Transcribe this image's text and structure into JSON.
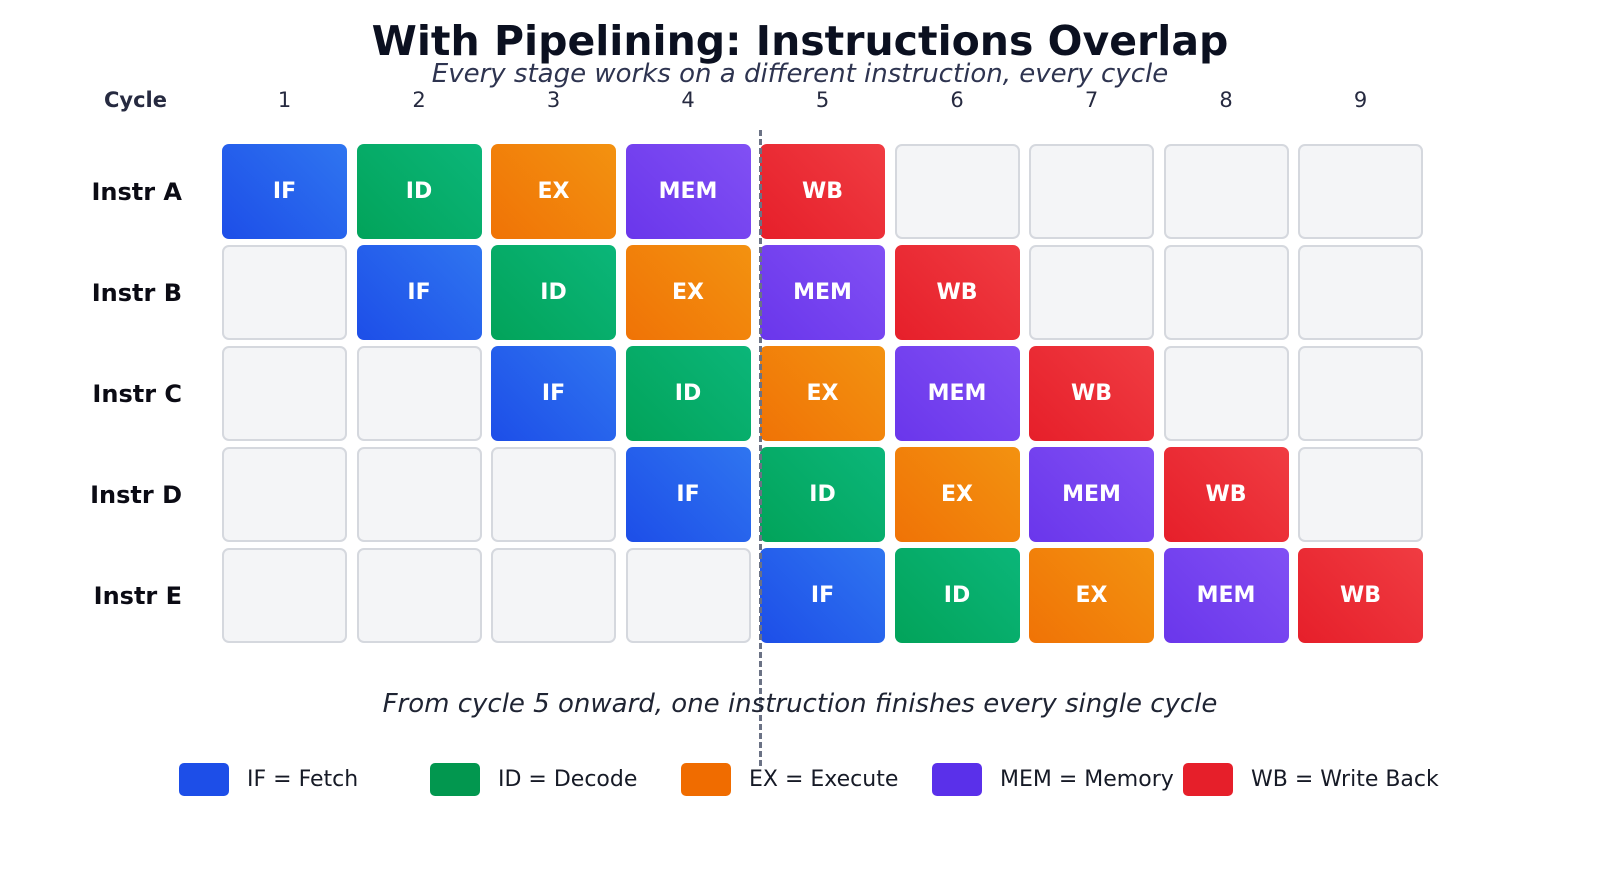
{
  "title": "With Pipelining: Instructions Overlap",
  "subtitle": "Every stage works on a different instruction, every cycle",
  "cycle_header": "Cycle",
  "cycles": [
    "1",
    "2",
    "3",
    "4",
    "5",
    "6",
    "7",
    "8",
    "9"
  ],
  "instructions": [
    {
      "label": "Instr A",
      "stages": [
        "IF",
        "ID",
        "EX",
        "MEM",
        "WB",
        "",
        "",
        "",
        ""
      ]
    },
    {
      "label": "Instr B",
      "stages": [
        "",
        "IF",
        "ID",
        "EX",
        "MEM",
        "WB",
        "",
        "",
        ""
      ]
    },
    {
      "label": "Instr C",
      "stages": [
        "",
        "",
        "IF",
        "ID",
        "EX",
        "MEM",
        "WB",
        "",
        ""
      ]
    },
    {
      "label": "Instr D",
      "stages": [
        "",
        "",
        "",
        "IF",
        "ID",
        "EX",
        "MEM",
        "WB",
        ""
      ]
    },
    {
      "label": "Instr E",
      "stages": [
        "",
        "",
        "",
        "",
        "IF",
        "ID",
        "EX",
        "MEM",
        "WB"
      ]
    }
  ],
  "note": "From cycle 5 onward, one instruction finishes every single cycle",
  "legend": [
    {
      "stage": "IF",
      "label": "IF = Fetch",
      "color": "#1d4ee8"
    },
    {
      "stage": "ID",
      "label": "ID = Decode",
      "color": "#02974f"
    },
    {
      "stage": "EX",
      "label": "EX = Execute",
      "color": "#f06c00"
    },
    {
      "stage": "MEM",
      "label": "MEM = Memory",
      "color": "#5a30ea"
    },
    {
      "stage": "WB",
      "label": "WB = Write Back",
      "color": "#e61f2a"
    }
  ]
}
